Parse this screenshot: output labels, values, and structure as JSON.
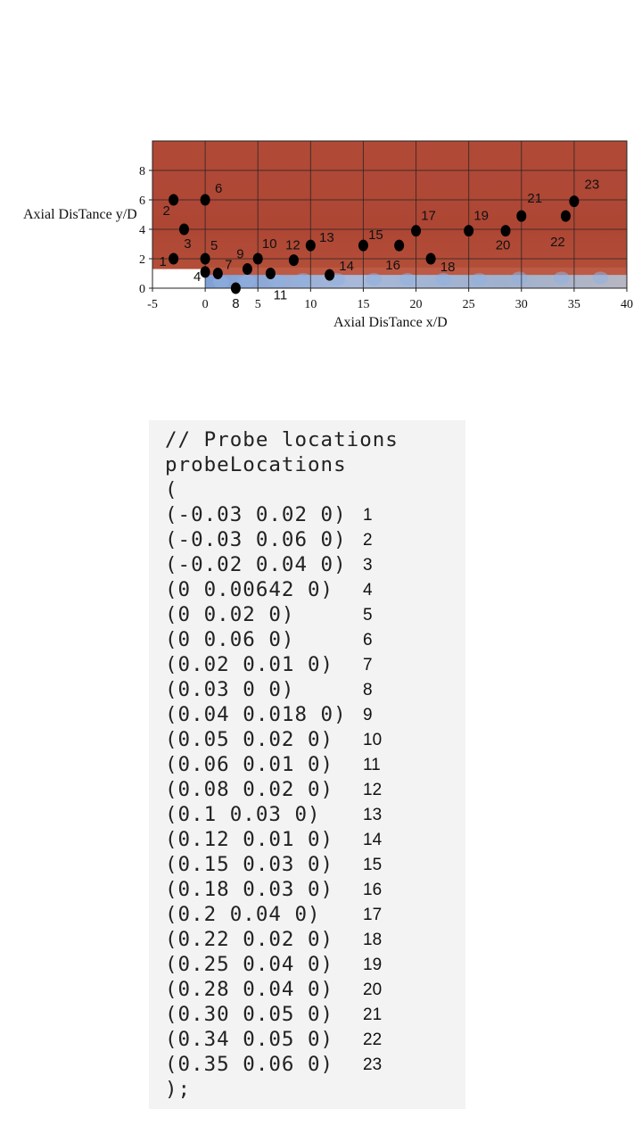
{
  "figure": {
    "y_axis_title": "Axial DisTance y/D",
    "x_axis_title": "Axial DisTance x/D",
    "x_ticks": [
      "-5",
      "0",
      "5",
      "10",
      "15",
      "20",
      "25",
      "30",
      "35",
      "40"
    ],
    "y_ticks": [
      "0",
      "2",
      "4",
      "6",
      "8"
    ],
    "colors": {
      "field": "#b24a36",
      "jet": "#8aa7d8",
      "point": "#000000"
    }
  },
  "chart_data": {
    "type": "scatter",
    "xlabel": "Axial DisTance x/D",
    "ylabel": "Axial DisTance y/D",
    "xlim": [
      -5,
      40
    ],
    "ylim": [
      0,
      10
    ],
    "grid": true,
    "points": [
      {
        "label": "1",
        "x": -3,
        "y": 2
      },
      {
        "label": "2",
        "x": -3,
        "y": 6
      },
      {
        "label": "3",
        "x": -2,
        "y": 4
      },
      {
        "label": "4",
        "x": 0,
        "y": 1.1
      },
      {
        "label": "5",
        "x": 0,
        "y": 2
      },
      {
        "label": "6",
        "x": 0,
        "y": 6
      },
      {
        "label": "7",
        "x": 1.2,
        "y": 1
      },
      {
        "label": "8",
        "x": 2.9,
        "y": 0
      },
      {
        "label": "9",
        "x": 4,
        "y": 1.3
      },
      {
        "label": "10",
        "x": 5,
        "y": 2
      },
      {
        "label": "11",
        "x": 6.2,
        "y": 1
      },
      {
        "label": "12",
        "x": 8.4,
        "y": 1.9
      },
      {
        "label": "13",
        "x": 10,
        "y": 2.9
      },
      {
        "label": "14",
        "x": 11.8,
        "y": 0.9
      },
      {
        "label": "15",
        "x": 15,
        "y": 2.9
      },
      {
        "label": "16",
        "x": 18.4,
        "y": 2.9
      },
      {
        "label": "17",
        "x": 20,
        "y": 3.9
      },
      {
        "label": "18",
        "x": 21.4,
        "y": 2
      },
      {
        "label": "19",
        "x": 25,
        "y": 3.9
      },
      {
        "label": "20",
        "x": 28.5,
        "y": 3.9
      },
      {
        "label": "21",
        "x": 30,
        "y": 4.9
      },
      {
        "label": "22",
        "x": 34.2,
        "y": 4.9
      },
      {
        "label": "23",
        "x": 35,
        "y": 5.9
      }
    ]
  },
  "code": {
    "lines": [
      {
        "text": "// Probe locations",
        "num": ""
      },
      {
        "text": "probeLocations",
        "num": ""
      },
      {
        "text": "(",
        "num": ""
      },
      {
        "text": "(-0.03 0.02 0)",
        "num": "1"
      },
      {
        "text": "(-0.03 0.06 0)",
        "num": "2"
      },
      {
        "text": "(-0.02 0.04 0)",
        "num": "3"
      },
      {
        "text": "(0 0.00642 0)",
        "num": "4"
      },
      {
        "text": "(0 0.02 0)",
        "num": "5"
      },
      {
        "text": "(0 0.06 0)",
        "num": "6"
      },
      {
        "text": "(0.02 0.01 0)",
        "num": "7"
      },
      {
        "text": "(0.03 0 0)",
        "num": "8"
      },
      {
        "text": "(0.04 0.018 0)",
        "num": "9"
      },
      {
        "text": "(0.05 0.02 0)",
        "num": "10"
      },
      {
        "text": "(0.06 0.01 0)",
        "num": "11"
      },
      {
        "text": "(0.08 0.02 0)",
        "num": "12"
      },
      {
        "text": "(0.1 0.03 0)",
        "num": "13"
      },
      {
        "text": "(0.12 0.01 0)",
        "num": "14"
      },
      {
        "text": "(0.15 0.03 0)",
        "num": "15"
      },
      {
        "text": "(0.18 0.03 0)",
        "num": "16"
      },
      {
        "text": "(0.2 0.04 0)",
        "num": "17"
      },
      {
        "text": "(0.22 0.02 0)",
        "num": "18"
      },
      {
        "text": "(0.25 0.04 0)",
        "num": "19"
      },
      {
        "text": "(0.28 0.04 0)",
        "num": "20"
      },
      {
        "text": "(0.30 0.05 0)",
        "num": "21"
      },
      {
        "text": "(0.34 0.05 0)",
        "num": "22"
      },
      {
        "text": "(0.35 0.06 0)",
        "num": "23"
      },
      {
        "text": ");",
        "num": ""
      }
    ]
  }
}
